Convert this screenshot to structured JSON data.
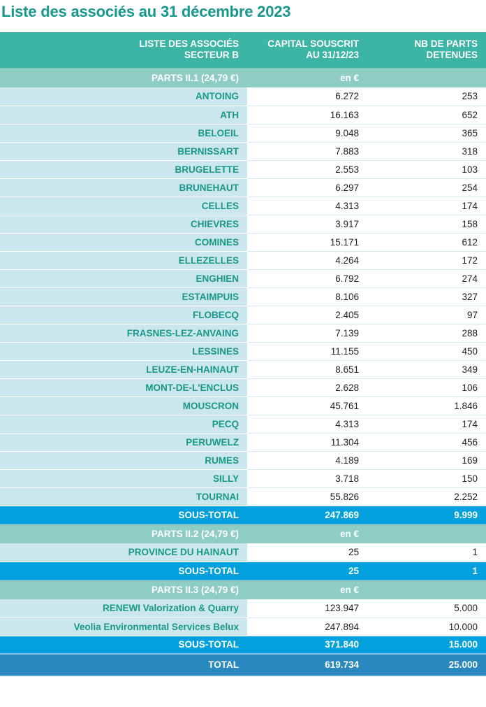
{
  "title": "Liste des associés au 31 décembre 2023",
  "header": {
    "col1_line1": "LISTE DES ASSOCIÉS",
    "col1_line2": "SECTEUR B",
    "col2_line1": "CAPITAL SOUSCRIT",
    "col2_line2": "AU 31/12/23",
    "col3_line1": "NB DE PARTS",
    "col3_line2": "DETENUES"
  },
  "sections": [
    {
      "label": "PARTS II.1 (24,79 €)",
      "unit": "en €",
      "rows": [
        {
          "name": "ANTOING",
          "capital": "6.272",
          "parts": "253"
        },
        {
          "name": "ATH",
          "capital": "16.163",
          "parts": "652"
        },
        {
          "name": "BELOEIL",
          "capital": "9.048",
          "parts": "365"
        },
        {
          "name": "BERNISSART",
          "capital": "7.883",
          "parts": "318"
        },
        {
          "name": "BRUGELETTE",
          "capital": "2.553",
          "parts": "103"
        },
        {
          "name": "BRUNEHAUT",
          "capital": "6.297",
          "parts": "254"
        },
        {
          "name": "CELLES",
          "capital": "4.313",
          "parts": "174"
        },
        {
          "name": "CHIEVRES",
          "capital": "3.917",
          "parts": "158"
        },
        {
          "name": "COMINES",
          "capital": "15.171",
          "parts": "612"
        },
        {
          "name": "ELLEZELLES",
          "capital": "4.264",
          "parts": "172"
        },
        {
          "name": "ENGHIEN",
          "capital": "6.792",
          "parts": "274"
        },
        {
          "name": "ESTAIMPUIS",
          "capital": "8.106",
          "parts": "327"
        },
        {
          "name": "FLOBECQ",
          "capital": "2.405",
          "parts": "97"
        },
        {
          "name": "FRASNES-LEZ-ANVAING",
          "capital": "7.139",
          "parts": "288"
        },
        {
          "name": "LESSINES",
          "capital": "11.155",
          "parts": "450"
        },
        {
          "name": "LEUZE-EN-HAINAUT",
          "capital": "8.651",
          "parts": "349"
        },
        {
          "name": "MONT-DE-L'ENCLUS",
          "capital": "2.628",
          "parts": "106"
        },
        {
          "name": "MOUSCRON",
          "capital": "45.761",
          "parts": "1.846"
        },
        {
          "name": "PECQ",
          "capital": "4.313",
          "parts": "174"
        },
        {
          "name": "PERUWELZ",
          "capital": "11.304",
          "parts": "456"
        },
        {
          "name": "RUMES",
          "capital": "4.189",
          "parts": "169"
        },
        {
          "name": "SILLY",
          "capital": "3.718",
          "parts": "150"
        },
        {
          "name": "TOURNAI",
          "capital": "55.826",
          "parts": "2.252"
        }
      ],
      "subtotal": {
        "label": "SOUS-TOTAL",
        "capital": "247.869",
        "parts": "9.999"
      }
    },
    {
      "label": "PARTS II.2 (24,79 €)",
      "unit": "en €",
      "rows": [
        {
          "name": "PROVINCE DU HAINAUT",
          "capital": "25",
          "parts": "1"
        }
      ],
      "subtotal": {
        "label": "SOUS-TOTAL",
        "capital": "25",
        "parts": "1"
      }
    },
    {
      "label": "PARTS II.3 (24,79 €)",
      "unit": "en €",
      "rows": [
        {
          "name": "RENEWI Valorization & Quarry",
          "capital": "123.947",
          "parts": "5.000"
        },
        {
          "name": "Veolia Environmental Services Belux",
          "capital": "247.894",
          "parts": "10.000"
        }
      ],
      "subtotal": {
        "label": "SOUS-TOTAL",
        "capital": "371.840",
        "parts": "15.000"
      }
    }
  ],
  "total": {
    "label": "TOTAL",
    "capital": "619.734",
    "parts": "25.000"
  },
  "colors": {
    "title": "#17988a",
    "header_bg": "#3db5a6",
    "group_bg": "#8ecdc2",
    "name_cell_bg": "#cbe6ec",
    "name_text": "#17988a",
    "subtotal_bg": "#02a1de",
    "total_bg": "#2989be"
  }
}
